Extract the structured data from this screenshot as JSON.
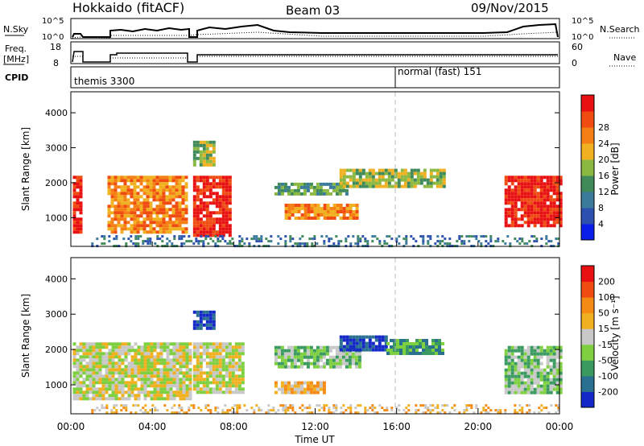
{
  "header": {
    "station": "Hokkaido (fitACF)",
    "beam": "Beam 03",
    "date": "09/Nov/2015"
  },
  "panels": {
    "nsky": {
      "label": "N.Sky",
      "tick_top": "10^5",
      "tick_bottom": "10^0",
      "right_label": "N.Search"
    },
    "freq": {
      "label_line1": "Freq.",
      "label_line2": "[MHz]",
      "left_ticks": [
        "18",
        "8"
      ],
      "right_ticks": [
        "60",
        "0"
      ],
      "right_label": "Nave"
    },
    "cpid": {
      "label": "CPID",
      "modes": [
        {
          "name": "themis 3300",
          "start_hour": 0.05
        },
        {
          "name": "normal (fast) 151",
          "start_hour": 16.0
        }
      ]
    }
  },
  "chart_data": [
    {
      "type": "heatmap",
      "name": "Power",
      "ylabel": "Slant Range [km]",
      "xlabel": "Time UT",
      "x_ticks": [
        "00:00",
        "04:00",
        "08:00",
        "12:00",
        "16:00",
        "20:00",
        "00:00"
      ],
      "x_tick_hours": [
        0,
        4,
        8,
        12,
        16,
        20,
        24
      ],
      "y_ticks": [
        "1000",
        "2000",
        "3000",
        "4000"
      ],
      "y_tick_values": [
        1000,
        2000,
        3000,
        4000
      ],
      "xlim": [
        0,
        24
      ],
      "ylim": [
        180,
        4600
      ],
      "colorbar": {
        "label": "Power [dB]",
        "ticks": [
          "4",
          "8",
          "12",
          "16",
          "20",
          "24",
          "28"
        ],
        "colors": [
          "#0a1eea",
          "#2c50b0",
          "#3a7a9a",
          "#3f8a58",
          "#8ab840",
          "#f0b020",
          "#f57f14",
          "#f04b10",
          "#e81010"
        ]
      },
      "regions": [
        {
          "t0": 0.1,
          "t1": 0.5,
          "r0": 600,
          "r1": 2200,
          "level": 8
        },
        {
          "t0": 1.8,
          "t1": 5.7,
          "r0": 600,
          "r1": 2200,
          "level": 6
        },
        {
          "t0": 6.0,
          "t1": 7.8,
          "r0": 500,
          "r1": 2200,
          "level": 8
        },
        {
          "t0": 6.0,
          "t1": 7.0,
          "r0": 2500,
          "r1": 3200,
          "level": 4
        },
        {
          "t0": 10.0,
          "t1": 13.5,
          "r0": 1700,
          "r1": 2000,
          "level": 3
        },
        {
          "t0": 10.5,
          "t1": 14.0,
          "r0": 1000,
          "r1": 1400,
          "level": 6
        },
        {
          "t0": 13.2,
          "t1": 18.3,
          "r0": 1900,
          "r1": 2400,
          "level": 4
        },
        {
          "t0": 21.3,
          "t1": 24.0,
          "r0": 800,
          "r1": 2200,
          "level": 8
        },
        {
          "t0": 1.0,
          "t1": 24.0,
          "r0": 180,
          "r1": 500,
          "level": 2
        }
      ]
    },
    {
      "type": "heatmap",
      "name": "Velocity",
      "ylabel": "Slant Range [km]",
      "xlabel": "Time UT",
      "x_ticks": [
        "00:00",
        "04:00",
        "08:00",
        "12:00",
        "16:00",
        "20:00",
        "00:00"
      ],
      "x_tick_hours": [
        0,
        4,
        8,
        12,
        16,
        20,
        24
      ],
      "y_ticks": [
        "1000",
        "2000",
        "3000",
        "4000"
      ],
      "y_tick_values": [
        1000,
        2000,
        3000,
        4000
      ],
      "xlim": [
        0,
        24
      ],
      "ylim": [
        180,
        4600
      ],
      "colorbar": {
        "label": "Velocity [m s⁻¹]",
        "ticks": [
          "200",
          "100",
          "50",
          "15",
          "-15",
          "-50",
          "-100",
          "-200"
        ],
        "colors": [
          "#1428c8",
          "#2a7090",
          "#3a9a60",
          "#7fd040",
          "#c8c8c8",
          "#f0b020",
          "#f58a14",
          "#f04b10",
          "#e81010"
        ]
      },
      "regions": [
        {
          "t0": 0.1,
          "t1": 5.8,
          "r0": 600,
          "r1": 2200,
          "level": 4
        },
        {
          "t0": 6.0,
          "t1": 8.5,
          "r0": 800,
          "r1": 2200,
          "level": 4
        },
        {
          "t0": 6.0,
          "t1": 7.0,
          "r0": 2600,
          "r1": 3100,
          "level": 0
        },
        {
          "t0": 10.0,
          "t1": 14.2,
          "r0": 1500,
          "r1": 2100,
          "level": 3
        },
        {
          "t0": 10.0,
          "t1": 12.5,
          "r0": 800,
          "r1": 1100,
          "level": 5
        },
        {
          "t0": 13.2,
          "t1": 15.5,
          "r0": 2000,
          "r1": 2400,
          "level": 0
        },
        {
          "t0": 15.5,
          "t1": 18.3,
          "r0": 1900,
          "r1": 2300,
          "level": 2
        },
        {
          "t0": 21.3,
          "t1": 24.0,
          "r0": 800,
          "r1": 2100,
          "level": 3
        },
        {
          "t0": 1.0,
          "t1": 24.0,
          "r0": 180,
          "r1": 450,
          "level": 5
        }
      ]
    }
  ]
}
